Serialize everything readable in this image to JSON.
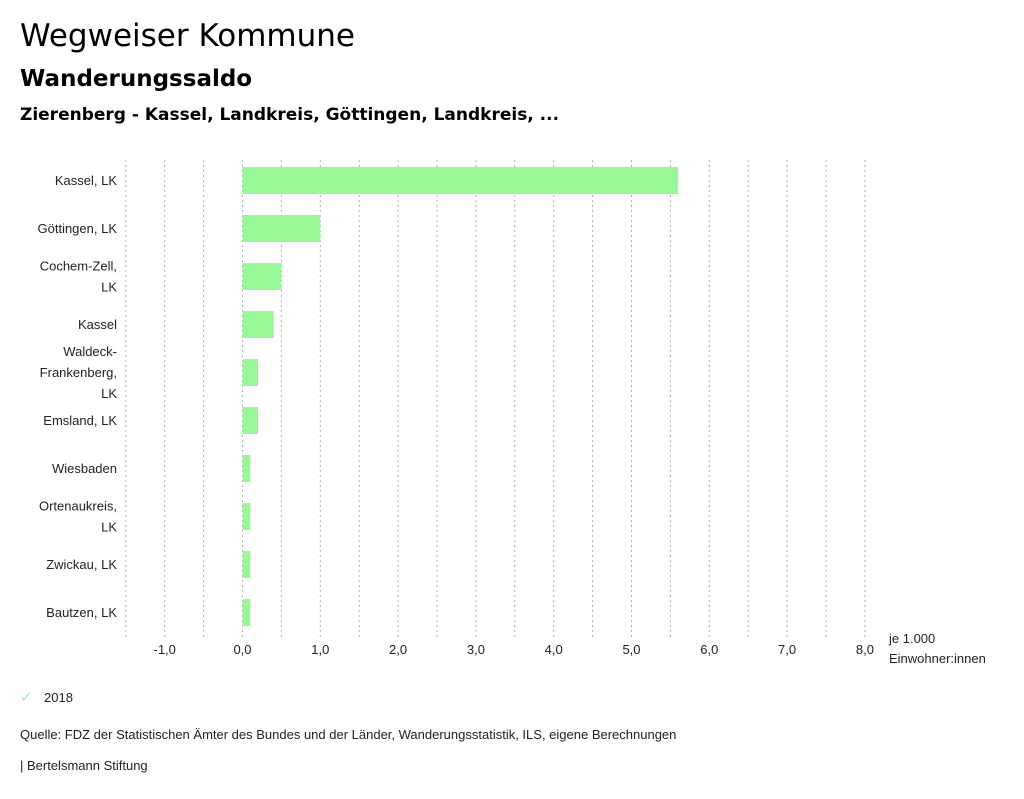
{
  "header": {
    "title": "Wegweiser Kommune",
    "subtitle": "Wanderungssaldo",
    "selection": "Zierenberg - Kassel, Landkreis, Göttingen, Landkreis, ..."
  },
  "chart_data": {
    "type": "bar",
    "orientation": "horizontal",
    "categories": [
      [
        "Kassel, LK"
      ],
      [
        "Göttingen, LK"
      ],
      [
        "Cochem-Zell,",
        "LK"
      ],
      [
        "Kassel"
      ],
      [
        "Waldeck-",
        "Frankenberg,",
        "LK"
      ],
      [
        "Emsland, LK"
      ],
      [
        "Wiesbaden"
      ],
      [
        "Ortenaukreis,",
        "LK"
      ],
      [
        "Zwickau, LK"
      ],
      [
        "Bautzen, LK"
      ]
    ],
    "series": [
      {
        "name": "2018",
        "color": "#98f898",
        "values": [
          5.6,
          1.0,
          0.5,
          0.4,
          0.2,
          0.2,
          0.1,
          0.1,
          0.1,
          0.1
        ]
      }
    ],
    "xlim": [
      -1.5,
      8.0
    ],
    "xticks": [
      -1,
      0,
      1,
      2,
      3,
      4,
      5,
      6,
      7,
      8
    ],
    "xtick_labels": [
      "-1,0",
      "0,0",
      "1,0",
      "2,0",
      "3,0",
      "4,0",
      "5,0",
      "6,0",
      "7,0",
      "8,0"
    ],
    "xlabel": [
      "je 1.000",
      "Einwohner:innen"
    ],
    "grid": "vertical-dotted",
    "legend": "bottom-left"
  },
  "legend": {
    "label": "2018",
    "icon": "check-icon",
    "color": "#98f898"
  },
  "footer": {
    "source": "Quelle: FDZ der Statistischen Ämter des Bundes und der Länder, Wanderungsstatistik, ILS, eigene Berechnungen",
    "credit": "| Bertelsmann Stiftung"
  }
}
